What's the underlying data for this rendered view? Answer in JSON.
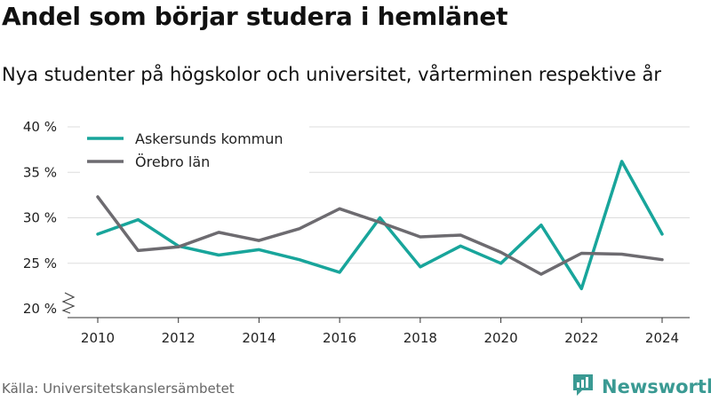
{
  "header": {
    "title": "Andel som börjar studera i hemlänet",
    "subtitle": "Nya studenter på högskolor och universitet, vårterminen respektive år"
  },
  "footer": {
    "source": "Källa: Universitetskanslersämbetet",
    "brand": "Newsworthy",
    "brand_icon": "newsworthy-logo-icon"
  },
  "colors": {
    "askersund": "#18a59b",
    "orebro": "#6d6b70",
    "grid": "#dddddd",
    "brand": "#3a9a93"
  },
  "chart_data": {
    "type": "line",
    "x": [
      2010,
      2011,
      2012,
      2013,
      2014,
      2015,
      2016,
      2017,
      2018,
      2019,
      2020,
      2021,
      2022,
      2023,
      2024
    ],
    "series": [
      {
        "name": "Askersunds kommun",
        "color": "#18a59b",
        "values": [
          28.2,
          29.8,
          26.9,
          25.9,
          26.5,
          25.4,
          24.0,
          30.0,
          24.6,
          26.9,
          25.0,
          29.2,
          22.2,
          36.2,
          28.2
        ]
      },
      {
        "name": "Örebro län",
        "color": "#6d6b70",
        "values": [
          32.3,
          26.4,
          26.8,
          28.4,
          27.5,
          28.8,
          31.0,
          29.5,
          27.9,
          28.1,
          26.2,
          23.8,
          26.1,
          26.0,
          25.4
        ]
      }
    ],
    "xticks": [
      2010,
      2012,
      2014,
      2016,
      2018,
      2020,
      2022,
      2024
    ],
    "xtick_labels": [
      "2010",
      "2012",
      "2014",
      "2016",
      "2018",
      "2020",
      "2022",
      "2024"
    ],
    "yticks": [
      20,
      25,
      30,
      35,
      40
    ],
    "ytick_labels": [
      "20 %",
      "25 %",
      "30 %",
      "35 %",
      "40 %"
    ],
    "ylim": [
      20,
      40
    ],
    "xlim": [
      2009.5,
      2024.5
    ],
    "y_axis_break": true,
    "grid": "horizontal",
    "legend_position": "top-left",
    "xlabel": "",
    "ylabel": ""
  }
}
